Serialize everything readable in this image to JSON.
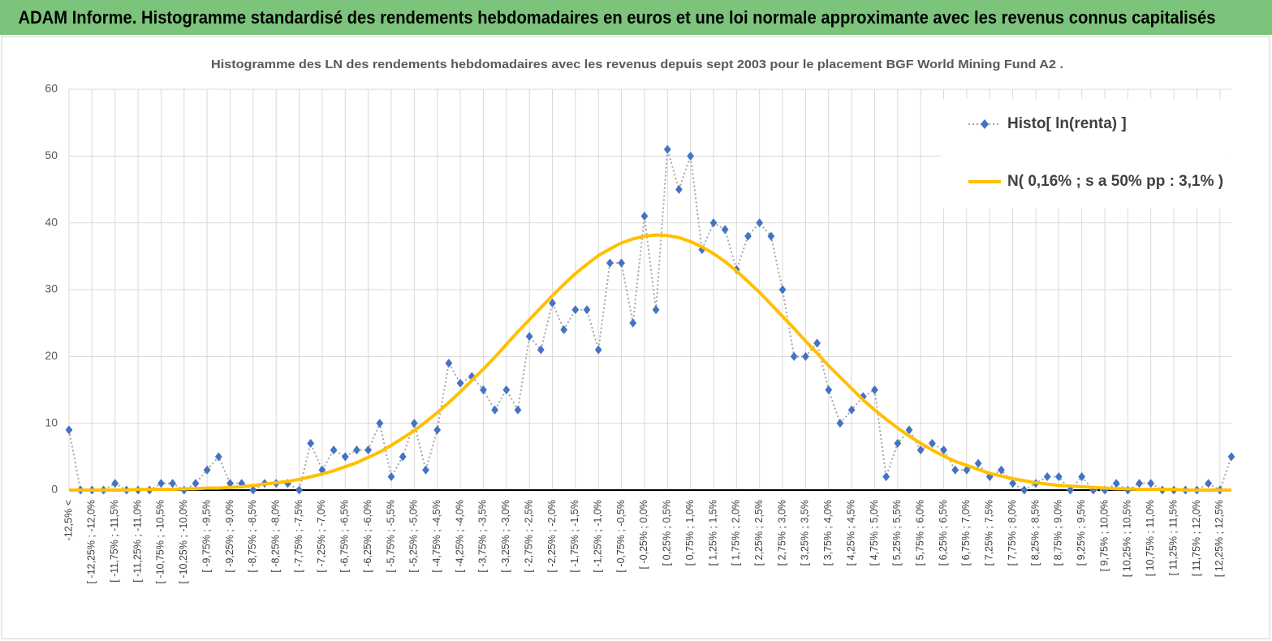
{
  "chart_data": {
    "type": "line",
    "title": "ADAM Informe. Histogramme standardisé des rendements hebdomadaires en euros et une loi normale approximante avec les revenus connus capitalisés",
    "subtitle": "Histogramme des LN des rendements hebdomadaires avec les revenus depuis sept 2003 pour le placement BGF World Mining Fund A2 .",
    "categories": [
      "-12,5% <",
      null,
      "[ -12,25% ; -12,0%",
      null,
      "[ -11,75% ; -11,5%",
      null,
      "[ -11,25% ; -11,0%",
      null,
      "[ -10,75% ; -10,5%",
      null,
      "[ -10,25% ; -10,0%",
      null,
      "[ -9,75% ; -9,5%",
      null,
      "[ -9,25% ; -9,0%",
      null,
      "[ -8,75% ; -8,5%",
      null,
      "[ -8,25% ; -8,0%",
      null,
      "[ -7,75% ; -7,5%",
      null,
      "[ -7,25% ; -7,0%",
      null,
      "[ -6,75% ; -6,5%",
      null,
      "[ -6,25% ; -6,0%",
      null,
      "[ -5,75% ; -5,5%",
      null,
      "[ -5,25% ; -5,0%",
      null,
      "[ -4,75% ; -4,5%",
      null,
      "[ -4,25% ; -4,0%",
      null,
      "[ -3,75% ; -3,5%",
      null,
      "[ -3,25% ; -3,0%",
      null,
      "[ -2,75% ; -2,5%",
      null,
      "[ -2,25% ; -2,0%",
      null,
      "[ -1,75% ; -1,5%",
      null,
      "[ -1,25% ; -1,0%",
      null,
      "[ -0,75% ; -0,5%",
      null,
      "[ -0,25% ; 0,0%",
      null,
      "[ 0,25% ; 0,5%",
      null,
      "[ 0,75% ; 1,0%",
      null,
      "[ 1,25% ; 1,5%",
      null,
      "[ 1,75% ; 2,0%",
      null,
      "[ 2,25% ; 2,5%",
      null,
      "[ 2,75% ; 3,0%",
      null,
      "[ 3,25% ; 3,5%",
      null,
      "[ 3,75% ; 4,0%",
      null,
      "[ 4,25% ; 4,5%",
      null,
      "[ 4,75% ; 5,0%",
      null,
      "[ 5,25% ; 5,5%",
      null,
      "[ 5,75% ; 6,0%",
      null,
      "[ 6,25% ; 6,5%",
      null,
      "[ 6,75% ; 7,0%",
      null,
      "[ 7,25% ; 7,5%",
      null,
      "[ 7,75% ; 8,0%",
      null,
      "[ 8,25% ; 8,5%",
      null,
      "[ 8,75% ; 9,0%",
      null,
      "[ 9,25% ; 9,5%",
      null,
      "[ 9,75% ; 10,0%",
      null,
      "[ 10,25% ; 10,5%",
      null,
      "[ 10,75% ; 11,0%",
      null,
      "[ 11,25% ; 11,5%",
      null,
      "[ 11,75% ; 12,0%",
      null,
      "[ 12,25% ; 12,5%",
      null
    ],
    "series": [
      {
        "name": "Histo[ ln(renta) ]",
        "color": "#4472c4",
        "line_color": "#a6a6a6",
        "linestyle": "dotted",
        "marker": "diamond",
        "values": [
          9,
          0,
          0,
          0,
          1,
          0,
          0,
          0,
          1,
          1,
          0,
          1,
          3,
          5,
          1,
          1,
          0,
          1,
          1,
          1,
          0,
          7,
          3,
          6,
          5,
          6,
          6,
          10,
          2,
          5,
          10,
          3,
          9,
          19,
          16,
          17,
          15,
          12,
          15,
          12,
          23,
          21,
          28,
          24,
          27,
          27,
          21,
          34,
          34,
          25,
          41,
          27,
          51,
          45,
          50,
          36,
          40,
          39,
          33,
          38,
          40,
          38,
          30,
          20,
          20,
          22,
          15,
          10,
          12,
          14,
          15,
          2,
          7,
          9,
          6,
          7,
          6,
          3,
          3,
          4,
          2,
          3,
          1,
          0,
          1,
          2,
          2,
          0,
          2,
          0,
          0,
          1,
          0,
          1,
          1,
          0,
          0,
          0,
          0,
          1,
          0,
          5
        ]
      },
      {
        "name": "N( 0,16% ; s a 50% pp : 3,1% )",
        "color": "#ffc000",
        "linestyle": "solid",
        "marker": "none",
        "values": [
          0.0,
          0.0,
          0.0,
          0.0,
          0.0,
          0.0,
          0.1,
          0.1,
          0.1,
          0.1,
          0.2,
          0.2,
          0.3,
          0.3,
          0.4,
          0.5,
          0.7,
          0.9,
          1.1,
          1.3,
          1.6,
          2.0,
          2.4,
          2.9,
          3.5,
          4.1,
          4.9,
          5.7,
          6.7,
          7.8,
          8.9,
          10.2,
          11.6,
          13.1,
          14.7,
          16.4,
          18.1,
          19.9,
          21.8,
          23.7,
          25.5,
          27.3,
          29.1,
          30.8,
          32.4,
          33.8,
          35.1,
          36.1,
          37.0,
          37.6,
          38.0,
          38.2,
          38.1,
          37.8,
          37.2,
          36.4,
          35.4,
          34.2,
          32.8,
          31.2,
          29.6,
          27.8,
          26.0,
          24.2,
          22.3,
          20.5,
          18.6,
          16.9,
          15.2,
          13.5,
          12.0,
          10.6,
          9.3,
          8.1,
          7.0,
          6.0,
          5.1,
          4.3,
          3.7,
          3.1,
          2.5,
          2.1,
          1.7,
          1.4,
          1.1,
          0.9,
          0.7,
          0.6,
          0.5,
          0.4,
          0.3,
          0.2,
          0.2,
          0.1,
          0.1,
          0.1,
          0.1,
          0.0,
          0.0,
          0.0,
          0.0,
          0.0
        ]
      }
    ],
    "ylim": [
      0,
      60
    ],
    "yticks": [
      0,
      10,
      20,
      30,
      40,
      50,
      60
    ],
    "grid": true,
    "legend": "upper right"
  }
}
